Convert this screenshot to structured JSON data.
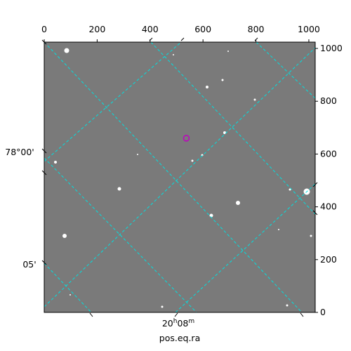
{
  "chart_data": {
    "type": "image",
    "xlim": [
      0,
      1024
    ],
    "ylim": [
      0,
      1024
    ],
    "xticks": [
      0,
      200,
      400,
      600,
      800,
      1000
    ],
    "yticks": [
      0,
      200,
      400,
      600,
      800,
      1000
    ],
    "dec_labels": [
      "78°00'",
      "05'"
    ],
    "ra_label": [
      "20",
      "h",
      "08",
      "m"
    ],
    "xlabel": "pos.eq.ra",
    "marker": {
      "x": 537,
      "y": 660,
      "color": "#c000c0"
    }
  }
}
